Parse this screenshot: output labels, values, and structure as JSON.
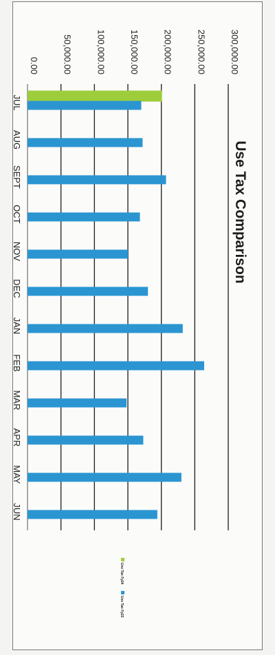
{
  "chart_data": {
    "type": "bar",
    "orientation": "vertical-rotated",
    "title": "Use Tax Comparison",
    "categories": [
      "JUL",
      "AUG",
      "SEPT",
      "OCT",
      "NOV",
      "DEC",
      "JAN",
      "FEB",
      "MAR",
      "APR",
      "MAY",
      "JUN"
    ],
    "series": [
      {
        "name": "Use Tax Fy24",
        "color": "#9dcd3b",
        "values": [
          201000,
          null,
          null,
          null,
          null,
          null,
          null,
          null,
          null,
          null,
          null,
          null
        ]
      },
      {
        "name": "Use Tax Fy23",
        "color": "#2b95d2",
        "values": [
          170000,
          172000,
          207000,
          168000,
          150000,
          180000,
          232000,
          264000,
          148000,
          173000,
          230000,
          194000
        ]
      }
    ],
    "ylim": [
      0,
      300000
    ],
    "yticks": [
      "0.00",
      "50,000.00",
      "100,000.00",
      "150,000.00",
      "200,000.00",
      "250,000.00",
      "300,000.00"
    ],
    "grid": true,
    "legend_position": "right"
  }
}
